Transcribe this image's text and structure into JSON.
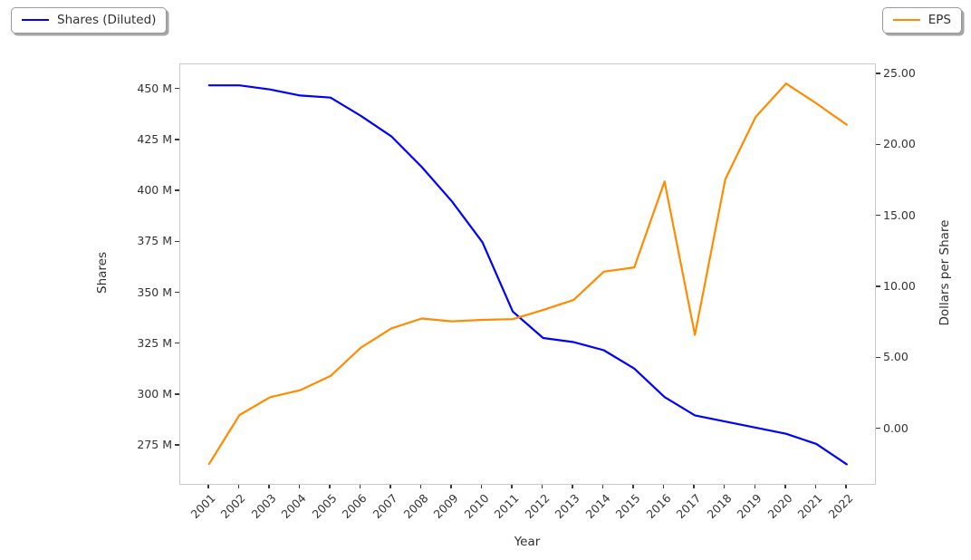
{
  "chart_data": {
    "type": "line",
    "title": "",
    "xlabel": "Year",
    "ylabel_left": "Shares",
    "ylabel_right": "Dollars per Share",
    "categories": [
      2001,
      2002,
      2003,
      2004,
      2005,
      2006,
      2007,
      2008,
      2009,
      2010,
      2011,
      2012,
      2013,
      2014,
      2015,
      2016,
      2017,
      2018,
      2019,
      2020,
      2021,
      2022
    ],
    "series": [
      {
        "name": "Shares (Diluted)",
        "axis": "left",
        "color": "#0000ff",
        "unit": "millions of shares",
        "values": [
          452,
          452,
          450,
          447,
          446,
          437,
          427,
          412,
          395,
          375,
          341,
          328,
          326,
          322,
          313,
          299,
          290,
          287,
          284,
          281,
          276,
          266
        ]
      },
      {
        "name": "EPS",
        "axis": "right",
        "color": "#ff8c00",
        "unit": "dollars per share",
        "values": [
          -2.45,
          1.0,
          2.25,
          2.75,
          3.75,
          5.75,
          7.1,
          7.8,
          7.6,
          7.7,
          7.75,
          8.4,
          9.1,
          11.1,
          11.4,
          17.45,
          6.65,
          17.6,
          22.0,
          24.35,
          22.95,
          21.45
        ]
      }
    ],
    "x_axis": {
      "xlim": [
        2000.05,
        2022.93
      ],
      "tick_values": [
        2001,
        2002,
        2003,
        2004,
        2005,
        2006,
        2007,
        2008,
        2009,
        2010,
        2011,
        2012,
        2013,
        2014,
        2015,
        2016,
        2017,
        2018,
        2019,
        2020,
        2021,
        2022
      ],
      "tick_labels": [
        "2001",
        "2002",
        "2003",
        "2004",
        "2005",
        "2006",
        "2007",
        "2008",
        "2009",
        "2010",
        "2011",
        "2012",
        "2013",
        "2014",
        "2015",
        "2016",
        "2017",
        "2018",
        "2019",
        "2020",
        "2021",
        "2022"
      ],
      "tick_rotation_deg": 45
    },
    "left_axis": {
      "ylim": [
        256.4,
        462.3
      ],
      "tick_values": [
        450,
        425,
        400,
        375,
        350,
        325,
        300,
        275
      ],
      "tick_labels": [
        "450 M",
        "425 M",
        "400 M",
        "375 M",
        "350 M",
        "325 M",
        "300 M",
        "275 M"
      ]
    },
    "right_axis": {
      "ylim": [
        -3.85,
        25.7
      ],
      "tick_values": [
        25,
        20,
        15,
        10,
        5,
        0
      ],
      "tick_labels": [
        "25.00",
        "20.00",
        "15.00",
        "10.00",
        "5.00",
        "0.00"
      ]
    },
    "grid": false,
    "legend_positions": [
      "outside upper-left",
      "outside upper-right"
    ]
  }
}
